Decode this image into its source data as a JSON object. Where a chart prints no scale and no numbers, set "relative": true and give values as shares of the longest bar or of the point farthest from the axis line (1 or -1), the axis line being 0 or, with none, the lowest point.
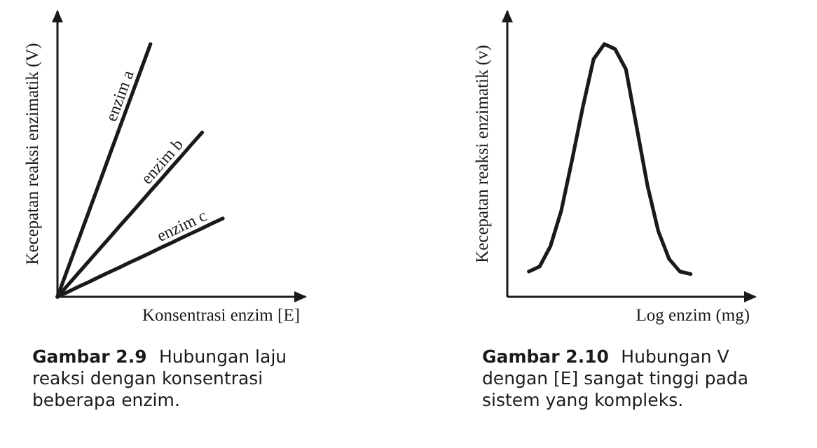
{
  "chart_data": [
    {
      "type": "line",
      "title": "Gambar 2.9",
      "annotations": [
        "Hubungan laju reaksi dengan konsentrasi beberapa enzim."
      ],
      "xlabel": "Konsentrasi enzim [E]",
      "ylabel": "Kecepatan reaksi enzimatik (V)",
      "relative": true,
      "categories": [
        null,
        null,
        null,
        null,
        null,
        null,
        null,
        null,
        null,
        null,
        null,
        null,
        null,
        null,
        null,
        null,
        null,
        null,
        null,
        null,
        null,
        null,
        null,
        null,
        null
      ],
      "series": [
        {
          "name": "enzim a",
          "color": "#1a1a1a",
          "values": [
            0,
            0.111,
            0.222,
            0.333,
            0.444,
            0.556,
            0.667,
            0.778,
            0.889,
            1,
            null,
            null,
            null,
            null,
            null,
            null,
            null,
            null,
            null,
            null,
            null,
            null,
            null,
            null,
            null
          ]
        },
        {
          "name": "enzim b",
          "color": "#1a1a1a",
          "values": [
            0,
            0.046,
            0.093,
            0.139,
            0.186,
            0.232,
            0.279,
            0.325,
            0.371,
            0.418,
            0.464,
            0.511,
            0.557,
            0.604,
            0.65,
            null,
            null,
            null,
            null,
            null,
            null,
            null,
            null,
            null,
            null
          ]
        },
        {
          "name": "enzim c",
          "color": "#1a1a1a",
          "values": [
            0,
            0.019,
            0.039,
            0.058,
            0.078,
            0.097,
            0.116,
            0.136,
            0.155,
            0.174,
            0.194,
            0.213,
            0.233,
            0.252,
            0.271,
            0.291,
            0.31,
            null,
            null,
            null,
            null,
            null,
            null,
            null,
            null
          ]
        }
      ]
    },
    {
      "type": "line",
      "title": "Gambar 2.10",
      "annotations": [
        "Hubungan V dengan [E] sangat tinggi pada sistem yang kompleks."
      ],
      "xlabel": "Log enzim (mg)",
      "ylabel": "Kecepatan reaksi enzimatik (v)",
      "relative": true,
      "categories": [
        null,
        null,
        null,
        null,
        null,
        null,
        null,
        null,
        null,
        null,
        null,
        null,
        null,
        null,
        null,
        null,
        null,
        null,
        null,
        null,
        null,
        null,
        null,
        null
      ],
      "series": [
        {
          "color": "#1a1a1a",
          "values": [
            null,
            null,
            0.1,
            0.12,
            0.2,
            0.34,
            0.54,
            0.75,
            0.94,
            1,
            0.98,
            0.9,
            0.67,
            0.44,
            0.26,
            0.15,
            0.1,
            0.09,
            null,
            null,
            null,
            null,
            null,
            null
          ]
        }
      ]
    }
  ]
}
